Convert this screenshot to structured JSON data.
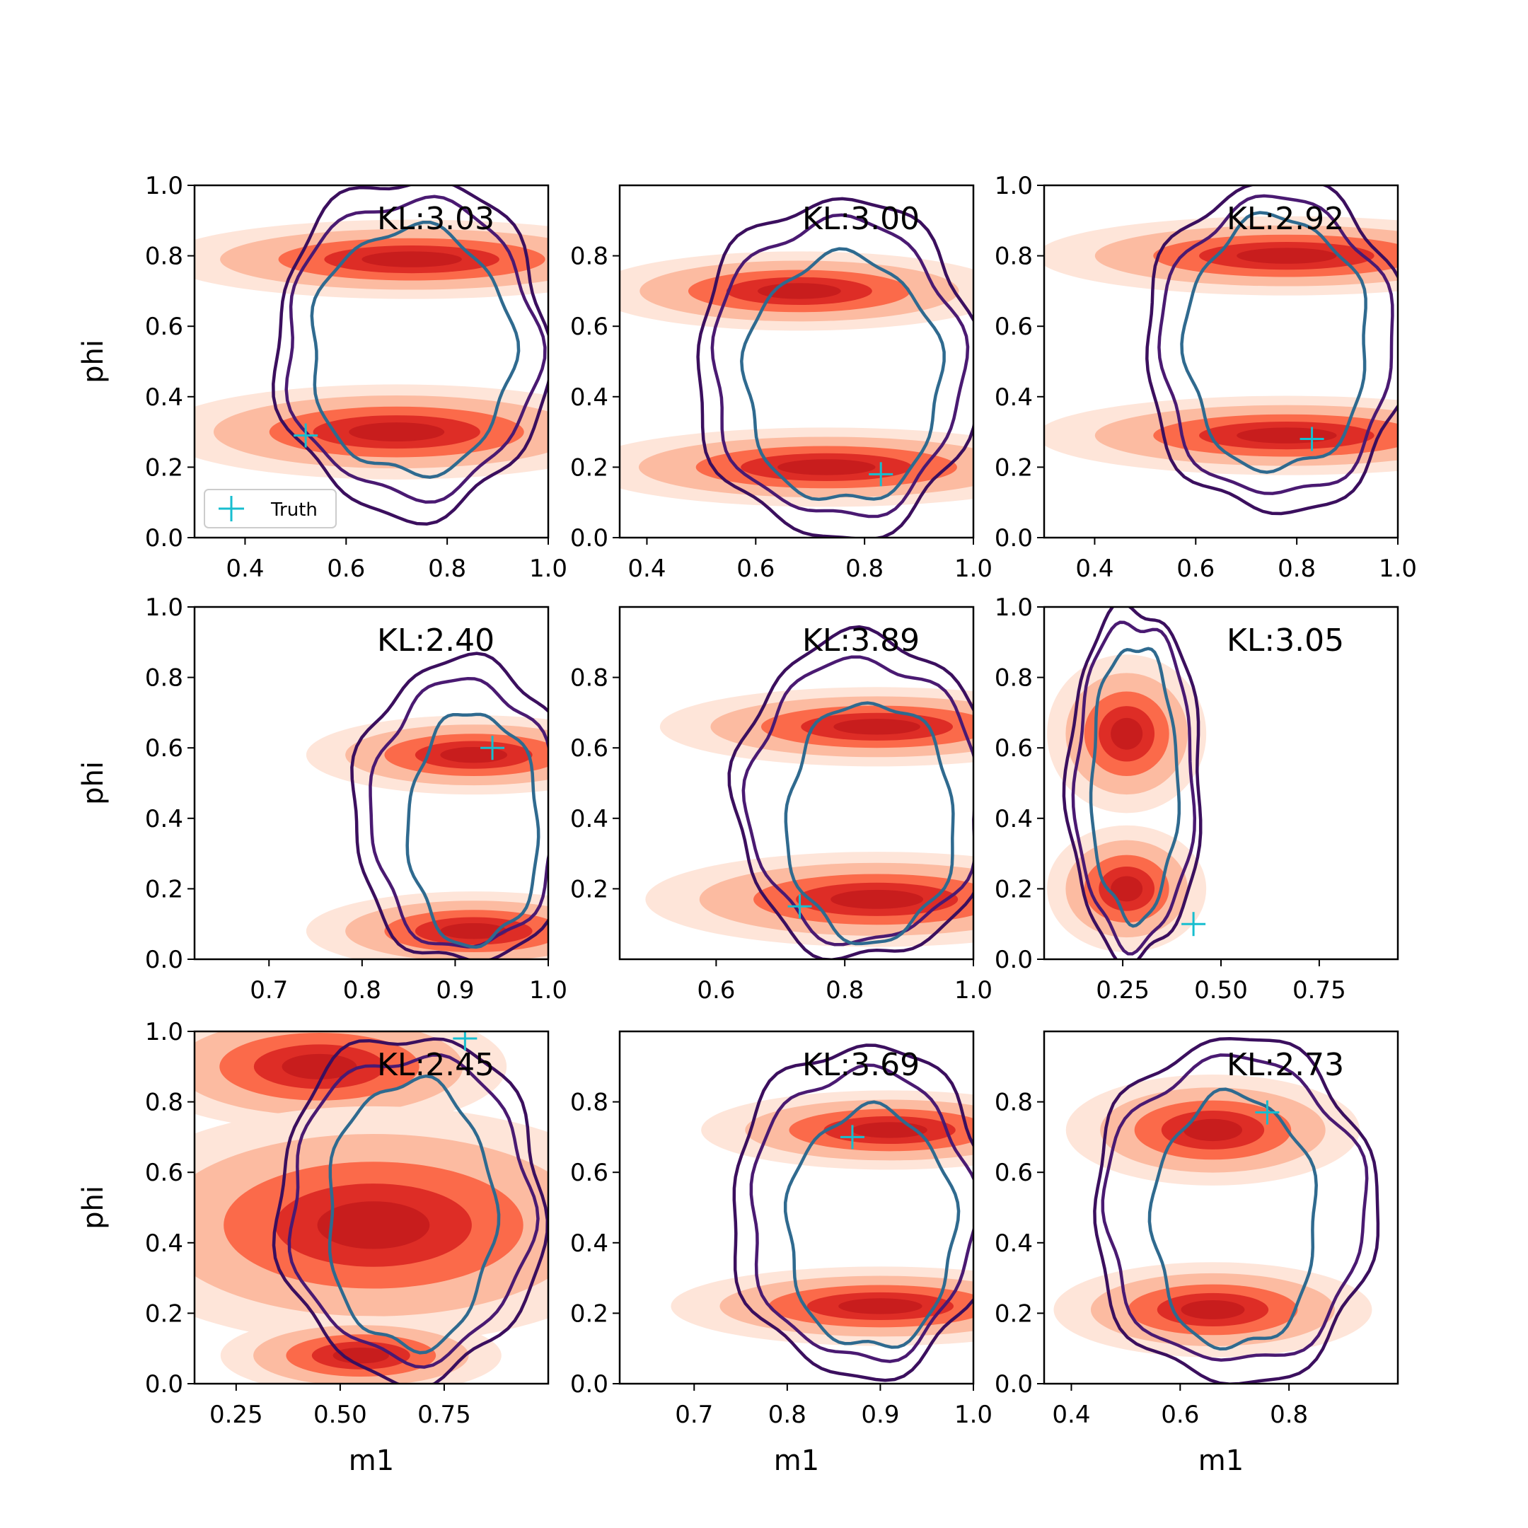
{
  "figure": {
    "y_label": "phi",
    "x_label": "m1",
    "legend_label": "Truth",
    "marker_color": "#17becf",
    "fill_colors": [
      "#fee5d9",
      "#fcbba1",
      "#fb6a4a",
      "#de2d26",
      "#c81d1d"
    ],
    "contour_colors": [
      "#3b0f5e",
      "#4a1a72",
      "#2f6a8f"
    ]
  },
  "chart_data": [
    {
      "type": "contour",
      "kl_label": "KL:3.03",
      "truth": [
        0.52,
        0.29
      ],
      "xlim": [
        0.3,
        1.0
      ],
      "ylim": [
        0.0,
        1.0
      ],
      "xticks": [
        "0.4",
        "0.6",
        "0.8",
        "1.0"
      ],
      "xtick_values": [
        0.4,
        0.6,
        0.8,
        1.0
      ],
      "yticks": [
        "0.0",
        "0.2",
        "0.4",
        "0.6",
        "0.8",
        "1.0"
      ],
      "ytick_values": [
        0,
        0.2,
        0.4,
        0.6,
        0.8,
        1.0
      ],
      "ylabel": "phi",
      "xlabel": "",
      "legend": true,
      "modes": [
        {
          "x": 0.73,
          "y": 0.79,
          "sx": 0.22,
          "sy": 0.05
        },
        {
          "x": 0.7,
          "y": 0.3,
          "sx": 0.21,
          "sy": 0.06
        }
      ],
      "contours": [
        {
          "x": 0.73,
          "y": 0.54,
          "rx": 0.27,
          "ry": 0.48
        },
        {
          "x": 0.73,
          "y": 0.54,
          "rx": 0.25,
          "ry": 0.42
        },
        {
          "x": 0.73,
          "y": 0.53,
          "rx": 0.2,
          "ry": 0.35
        }
      ]
    },
    {
      "type": "contour",
      "kl_label": "KL:3.00",
      "truth": [
        0.83,
        0.18
      ],
      "xlim": [
        0.35,
        1.0
      ],
      "ylim": [
        0.0,
        1.0
      ],
      "xticks": [
        "0.4",
        "0.6",
        "0.8",
        "1.0"
      ],
      "xtick_values": [
        0.4,
        0.6,
        0.8,
        1.0
      ],
      "yticks": [
        "0.0",
        "0.2",
        "0.4",
        "0.6",
        "0.8"
      ],
      "ytick_values": [
        0,
        0.2,
        0.4,
        0.6,
        0.8
      ],
      "ylabel": "",
      "xlabel": "",
      "legend": false,
      "modes": [
        {
          "x": 0.68,
          "y": 0.7,
          "sx": 0.17,
          "sy": 0.05
        },
        {
          "x": 0.73,
          "y": 0.2,
          "sx": 0.2,
          "sy": 0.05
        }
      ],
      "contours": [
        {
          "x": 0.75,
          "y": 0.48,
          "rx": 0.26,
          "ry": 0.48
        },
        {
          "x": 0.75,
          "y": 0.48,
          "rx": 0.23,
          "ry": 0.42
        },
        {
          "x": 0.76,
          "y": 0.45,
          "rx": 0.18,
          "ry": 0.35
        }
      ]
    },
    {
      "type": "contour",
      "kl_label": "KL:2.92",
      "truth": [
        0.83,
        0.28
      ],
      "xlim": [
        0.3,
        1.0
      ],
      "ylim": [
        0.0,
        1.0
      ],
      "xticks": [
        "0.4",
        "0.6",
        "0.8",
        "1.0"
      ],
      "xtick_values": [
        0.4,
        0.6,
        0.8,
        1.0
      ],
      "yticks": [
        "0.0",
        "0.2",
        "0.4",
        "0.6",
        "0.8",
        "1.0"
      ],
      "ytick_values": [
        0,
        0.2,
        0.4,
        0.6,
        0.8,
        1.0
      ],
      "ylabel": "",
      "xlabel": "",
      "legend": false,
      "modes": [
        {
          "x": 0.78,
          "y": 0.8,
          "sx": 0.22,
          "sy": 0.05
        },
        {
          "x": 0.78,
          "y": 0.29,
          "sx": 0.22,
          "sy": 0.05
        }
      ],
      "contours": [
        {
          "x": 0.76,
          "y": 0.54,
          "rx": 0.26,
          "ry": 0.47
        },
        {
          "x": 0.76,
          "y": 0.54,
          "rx": 0.23,
          "ry": 0.42
        },
        {
          "x": 0.76,
          "y": 0.55,
          "rx": 0.18,
          "ry": 0.36
        }
      ]
    },
    {
      "type": "contour",
      "kl_label": "KL:2.40",
      "truth": [
        0.94,
        0.6
      ],
      "xlim": [
        0.62,
        1.0
      ],
      "ylim": [
        0.0,
        1.0
      ],
      "xticks": [
        "0.7",
        "0.8",
        "0.9",
        "1.0"
      ],
      "xtick_values": [
        0.7,
        0.8,
        0.9,
        1.0
      ],
      "yticks": [
        "0.0",
        "0.2",
        "0.4",
        "0.6",
        "0.8",
        "1.0"
      ],
      "ytick_values": [
        0,
        0.2,
        0.4,
        0.6,
        0.8,
        1.0
      ],
      "ylabel": "phi",
      "xlabel": "",
      "legend": false,
      "modes": [
        {
          "x": 0.92,
          "y": 0.58,
          "sx": 0.08,
          "sy": 0.05
        },
        {
          "x": 0.92,
          "y": 0.08,
          "sx": 0.08,
          "sy": 0.05
        }
      ],
      "contours": [
        {
          "x": 0.91,
          "y": 0.42,
          "rx": 0.12,
          "ry": 0.43
        },
        {
          "x": 0.91,
          "y": 0.41,
          "rx": 0.1,
          "ry": 0.38
        },
        {
          "x": 0.92,
          "y": 0.37,
          "rx": 0.07,
          "ry": 0.33
        }
      ]
    },
    {
      "type": "contour",
      "kl_label": "KL:3.89",
      "truth": [
        0.73,
        0.15
      ],
      "xlim": [
        0.45,
        1.0
      ],
      "ylim": [
        0.0,
        1.0
      ],
      "xticks": [
        "0.6",
        "0.8",
        "1.0"
      ],
      "xtick_values": [
        0.6,
        0.8,
        1.0
      ],
      "yticks": [
        "0.2",
        "0.4",
        "0.6",
        "0.8"
      ],
      "ytick_values": [
        0.2,
        0.4,
        0.6,
        0.8
      ],
      "ylabel": "",
      "xlabel": "",
      "legend": false,
      "modes": [
        {
          "x": 0.85,
          "y": 0.66,
          "sx": 0.15,
          "sy": 0.05
        },
        {
          "x": 0.85,
          "y": 0.17,
          "sx": 0.16,
          "sy": 0.06
        }
      ],
      "contours": [
        {
          "x": 0.83,
          "y": 0.46,
          "rx": 0.2,
          "ry": 0.46
        },
        {
          "x": 0.83,
          "y": 0.45,
          "rx": 0.18,
          "ry": 0.4
        },
        {
          "x": 0.84,
          "y": 0.39,
          "rx": 0.13,
          "ry": 0.34
        }
      ]
    },
    {
      "type": "contour",
      "kl_label": "KL:3.05",
      "truth": [
        0.43,
        0.1
      ],
      "xlim": [
        0.05,
        0.95
      ],
      "ylim": [
        0.0,
        1.0
      ],
      "xticks": [
        "0.25",
        "0.50",
        "0.75"
      ],
      "xtick_values": [
        0.25,
        0.5,
        0.75
      ],
      "yticks": [
        "0.0",
        "0.2",
        "0.4",
        "0.6",
        "0.8",
        "1.0"
      ],
      "ytick_values": [
        0,
        0.2,
        0.4,
        0.6,
        0.8,
        1.0
      ],
      "ylabel": "",
      "xlabel": "",
      "legend": false,
      "modes": [
        {
          "x": 0.26,
          "y": 0.64,
          "sx": 0.09,
          "sy": 0.1
        },
        {
          "x": 0.26,
          "y": 0.2,
          "sx": 0.09,
          "sy": 0.08
        }
      ],
      "contours": [
        {
          "x": 0.28,
          "y": 0.5,
          "rx": 0.17,
          "ry": 0.5
        },
        {
          "x": 0.28,
          "y": 0.5,
          "rx": 0.15,
          "ry": 0.46
        },
        {
          "x": 0.28,
          "y": 0.5,
          "rx": 0.11,
          "ry": 0.39
        }
      ]
    },
    {
      "type": "contour",
      "kl_label": "KL:2.45",
      "truth": [
        0.8,
        0.98
      ],
      "xlim": [
        0.15,
        1.0
      ],
      "ylim": [
        0.0,
        1.0
      ],
      "xticks": [
        "0.25",
        "0.50",
        "0.75"
      ],
      "xtick_values": [
        0.25,
        0.5,
        0.75
      ],
      "yticks": [
        "0.0",
        "0.2",
        "0.4",
        "0.6",
        "0.8",
        "1.0"
      ],
      "ytick_values": [
        0,
        0.2,
        0.4,
        0.6,
        0.8,
        1.0
      ],
      "ylabel": "phi",
      "xlabel": "m1",
      "legend": false,
      "modes": [
        {
          "x": 0.45,
          "y": 0.9,
          "sx": 0.2,
          "sy": 0.08
        },
        {
          "x": 0.58,
          "y": 0.45,
          "sx": 0.3,
          "sy": 0.15
        },
        {
          "x": 0.55,
          "y": 0.08,
          "sx": 0.15,
          "sy": 0.05
        }
      ],
      "contours": [
        {
          "x": 0.67,
          "y": 0.5,
          "rx": 0.32,
          "ry": 0.49
        },
        {
          "x": 0.67,
          "y": 0.5,
          "rx": 0.29,
          "ry": 0.43
        },
        {
          "x": 0.67,
          "y": 0.48,
          "rx": 0.2,
          "ry": 0.38
        }
      ]
    },
    {
      "type": "contour",
      "kl_label": "KL:3.69",
      "truth": [
        0.87,
        0.7
      ],
      "xlim": [
        0.62,
        1.0
      ],
      "ylim": [
        0.0,
        1.0
      ],
      "xticks": [
        "0.7",
        "0.8",
        "0.9",
        "1.0"
      ],
      "xtick_values": [
        0.7,
        0.8,
        0.9,
        1.0
      ],
      "yticks": [
        "0.0",
        "0.2",
        "0.4",
        "0.6",
        "0.8"
      ],
      "ytick_values": [
        0,
        0.2,
        0.4,
        0.6,
        0.8
      ],
      "ylabel": "",
      "xlabel": "m1",
      "legend": false,
      "modes": [
        {
          "x": 0.91,
          "y": 0.72,
          "sx": 0.09,
          "sy": 0.05
        },
        {
          "x": 0.9,
          "y": 0.22,
          "sx": 0.1,
          "sy": 0.05
        }
      ],
      "contours": [
        {
          "x": 0.88,
          "y": 0.49,
          "rx": 0.14,
          "ry": 0.47
        },
        {
          "x": 0.88,
          "y": 0.48,
          "rx": 0.12,
          "ry": 0.41
        },
        {
          "x": 0.89,
          "y": 0.44,
          "rx": 0.09,
          "ry": 0.34
        }
      ]
    },
    {
      "type": "contour",
      "kl_label": "KL:2.73",
      "truth": [
        0.76,
        0.77
      ],
      "xlim": [
        0.35,
        1.0
      ],
      "ylim": [
        0.0,
        1.0
      ],
      "xticks": [
        "0.4",
        "0.6",
        "0.8"
      ],
      "xtick_values": [
        0.4,
        0.6,
        0.8
      ],
      "yticks": [
        "0.0",
        "0.2",
        "0.4",
        "0.6",
        "0.8"
      ],
      "ytick_values": [
        0,
        0.2,
        0.4,
        0.6,
        0.8
      ],
      "ylabel": "",
      "xlabel": "m1",
      "legend": false,
      "modes": [
        {
          "x": 0.66,
          "y": 0.72,
          "sx": 0.12,
          "sy": 0.07
        },
        {
          "x": 0.66,
          "y": 0.21,
          "sx": 0.13,
          "sy": 0.06
        }
      ],
      "contours": [
        {
          "x": 0.7,
          "y": 0.49,
          "rx": 0.26,
          "ry": 0.49
        },
        {
          "x": 0.7,
          "y": 0.49,
          "rx": 0.24,
          "ry": 0.43
        },
        {
          "x": 0.7,
          "y": 0.46,
          "rx": 0.15,
          "ry": 0.36
        }
      ]
    }
  ]
}
